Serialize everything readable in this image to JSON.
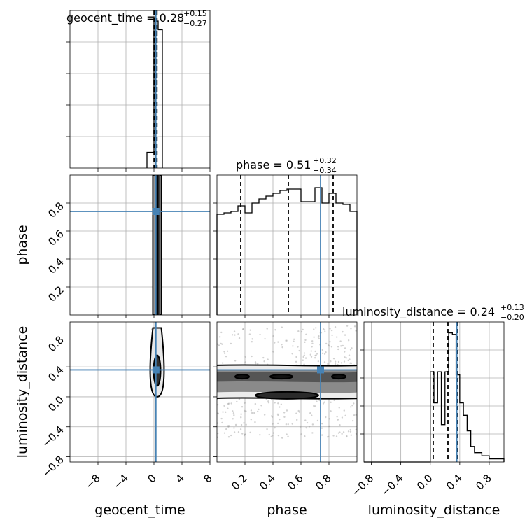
{
  "figure": "corner plot",
  "colors": {
    "truth": "#4682b4",
    "histogram": "#000000",
    "contour": "#000000",
    "grid": "#b0b0b0"
  },
  "chart_data": [
    {
      "type": "histogram",
      "panel": "geocent_time marginal",
      "title": {
        "main": "geocent_time = 0.28",
        "sup": "+0.15",
        "sub": "−0.27"
      },
      "xlim": [
        -12,
        8
      ],
      "quantiles": [
        0.01,
        0.28,
        0.43
      ],
      "truth": 0.28,
      "bin_edges": [
        -1.0,
        0.0,
        0.6,
        1.2
      ],
      "counts": [
        0.09,
        0.84,
        0.79
      ],
      "ymax": 0.9
    },
    {
      "type": "histogram",
      "panel": "phase marginal",
      "title": {
        "main": "phase = 0.51",
        "sup": "+0.32",
        "sub": "−0.34"
      },
      "xlim": [
        0.0,
        1.0
      ],
      "quantiles": [
        0.17,
        0.51,
        0.83
      ],
      "truth": 0.74,
      "bin_edges": [
        0.0,
        0.05,
        0.1,
        0.15,
        0.2,
        0.25,
        0.3,
        0.35,
        0.4,
        0.45,
        0.5,
        0.55,
        0.6,
        0.65,
        0.7,
        0.75,
        0.8,
        0.85,
        0.9,
        0.95,
        1.0
      ],
      "counts": [
        0.72,
        0.73,
        0.74,
        0.78,
        0.73,
        0.8,
        0.83,
        0.85,
        0.87,
        0.89,
        0.9,
        0.9,
        0.81,
        0.81,
        0.91,
        0.8,
        0.87,
        0.8,
        0.79,
        0.74
      ],
      "ymax": 1.0
    },
    {
      "type": "histogram",
      "panel": "luminosity_distance marginal",
      "title": {
        "main": "luminosity_distance = 0.24",
        "sup": "+0.13",
        "sub": "−0.20"
      },
      "xlim": [
        -0.9,
        1.0
      ],
      "quantiles": [
        0.04,
        0.24,
        0.37
      ],
      "truth": 0.36,
      "bin_edges": [
        -0.9,
        0.0,
        0.05,
        0.1,
        0.15,
        0.2,
        0.25,
        0.3,
        0.35,
        0.4,
        0.45,
        0.5,
        0.55,
        0.6,
        0.7,
        0.8,
        0.9,
        1.0
      ],
      "counts": [
        0.0,
        0.58,
        0.38,
        0.58,
        0.24,
        0.58,
        0.83,
        0.82,
        0.56,
        0.38,
        0.3,
        0.2,
        0.1,
        0.06,
        0.04,
        0.02,
        0.02
      ],
      "ymax": 0.9
    },
    {
      "type": "contour",
      "panel": "geocent_time vs phase",
      "xlim": [
        -12,
        8
      ],
      "ylim": [
        0.0,
        1.0
      ],
      "truth": [
        0.28,
        0.74
      ]
    },
    {
      "type": "contour",
      "panel": "geocent_time vs luminosity_distance",
      "xlim": [
        -12,
        8
      ],
      "ylim": [
        -0.87,
        1.0
      ],
      "truth": [
        0.28,
        0.36
      ]
    },
    {
      "type": "contour",
      "panel": "phase vs luminosity_distance",
      "xlim": [
        0.0,
        1.0
      ],
      "ylim": [
        -0.87,
        1.0
      ],
      "truth": [
        0.74,
        0.36
      ]
    }
  ],
  "axes": {
    "geocent_time": {
      "label": "geocent_time",
      "ticks": [
        -8,
        -4,
        0,
        4,
        8
      ],
      "tick_labels": [
        "−8",
        "−4",
        "0",
        "4",
        "8"
      ]
    },
    "phase": {
      "label": "phase",
      "ticks": [
        0.2,
        0.4,
        0.6,
        0.8
      ],
      "tick_labels": [
        "0.2",
        "0.4",
        "0.6",
        "0.8"
      ]
    },
    "luminosity_distance": {
      "label": "luminosity_distance",
      "ticks": [
        -0.8,
        -0.4,
        0.0,
        0.4,
        0.8
      ],
      "tick_labels": [
        "−0.8",
        "−0.4",
        "0.0",
        "0.4",
        "0.8"
      ]
    }
  }
}
